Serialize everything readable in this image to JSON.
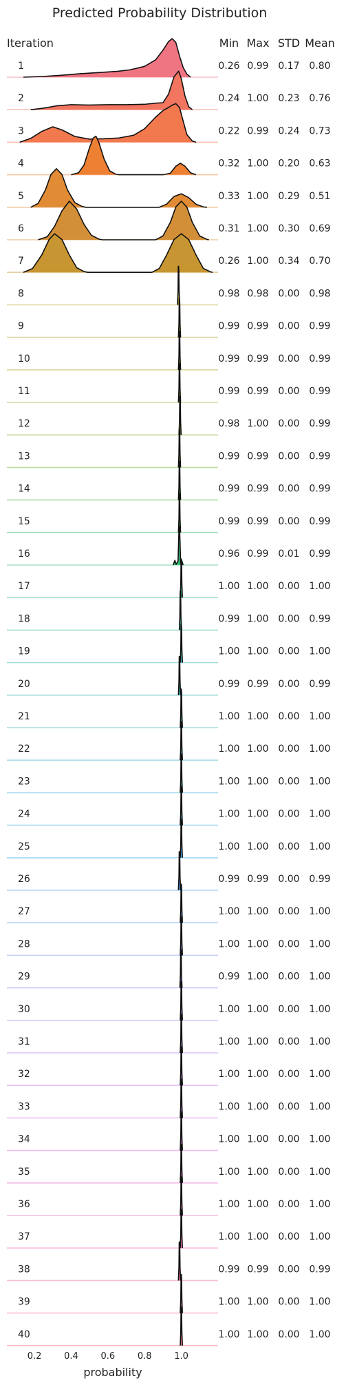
{
  "chart_data": {
    "type": "ridgeline",
    "title": "Predicted Probability Distribution",
    "xlabel": "probability",
    "row_header": "Iteration",
    "stat_headers": [
      "Min",
      "Max",
      "STD",
      "Mean"
    ],
    "xlim": [
      0.05,
      1.2
    ],
    "xticks": [
      0.2,
      0.4,
      0.6,
      0.8,
      1.0
    ],
    "xtick_labels": [
      "0.2",
      "0.4",
      "0.6",
      "0.8",
      "1.0"
    ],
    "rows": [
      {
        "iteration": "1",
        "min": "0.26",
        "max": "0.99",
        "std": "0.17",
        "mean": "0.80",
        "color": "#f07582",
        "curve": [
          [
            0.14,
            0
          ],
          [
            0.25,
            0.02
          ],
          [
            0.35,
            0.05
          ],
          [
            0.45,
            0.09
          ],
          [
            0.55,
            0.12
          ],
          [
            0.65,
            0.15
          ],
          [
            0.72,
            0.19
          ],
          [
            0.8,
            0.28
          ],
          [
            0.86,
            0.45
          ],
          [
            0.9,
            0.7
          ],
          [
            0.93,
            0.92
          ],
          [
            0.95,
            1.0
          ],
          [
            0.97,
            0.9
          ],
          [
            0.99,
            0.55
          ],
          [
            1.01,
            0.25
          ],
          [
            1.03,
            0.08
          ],
          [
            1.05,
            0
          ]
        ]
      },
      {
        "iteration": "2",
        "min": "0.24",
        "max": "1.00",
        "std": "0.23",
        "mean": "0.76",
        "color": "#f27560",
        "curve": [
          [
            0.18,
            0
          ],
          [
            0.25,
            0.04
          ],
          [
            0.32,
            0.1
          ],
          [
            0.4,
            0.13
          ],
          [
            0.5,
            0.12
          ],
          [
            0.6,
            0.13
          ],
          [
            0.7,
            0.13
          ],
          [
            0.8,
            0.14
          ],
          [
            0.86,
            0.17
          ],
          [
            0.9,
            0.18
          ],
          [
            0.93,
            0.4
          ],
          [
            0.96,
            0.85
          ],
          [
            0.985,
            1.0
          ],
          [
            1.0,
            0.8
          ],
          [
            1.02,
            0.35
          ],
          [
            1.04,
            0.08
          ],
          [
            1.06,
            0
          ]
        ]
      },
      {
        "iteration": "3",
        "min": "0.22",
        "max": "0.99",
        "std": "0.24",
        "mean": "0.73",
        "color": "#f2784e",
        "curve": [
          [
            0.12,
            0
          ],
          [
            0.18,
            0.1
          ],
          [
            0.24,
            0.28
          ],
          [
            0.3,
            0.4
          ],
          [
            0.35,
            0.32
          ],
          [
            0.42,
            0.15
          ],
          [
            0.5,
            0.08
          ],
          [
            0.58,
            0.09
          ],
          [
            0.66,
            0.11
          ],
          [
            0.74,
            0.18
          ],
          [
            0.8,
            0.35
          ],
          [
            0.86,
            0.65
          ],
          [
            0.9,
            0.82
          ],
          [
            0.93,
            0.9
          ],
          [
            0.95,
            0.96
          ],
          [
            0.97,
            1.0
          ],
          [
            0.99,
            0.9
          ],
          [
            1.01,
            0.55
          ],
          [
            1.03,
            0.2
          ],
          [
            1.06,
            0.03
          ],
          [
            1.08,
            0
          ]
        ]
      },
      {
        "iteration": "4",
        "min": "0.32",
        "max": "1.00",
        "std": "0.20",
        "mean": "0.63",
        "color": "#ee8033",
        "curve": [
          [
            0.4,
            0
          ],
          [
            0.44,
            0.05
          ],
          [
            0.47,
            0.25
          ],
          [
            0.5,
            0.7
          ],
          [
            0.52,
            0.95
          ],
          [
            0.535,
            1.0
          ],
          [
            0.55,
            0.85
          ],
          [
            0.58,
            0.4
          ],
          [
            0.61,
            0.1
          ],
          [
            0.64,
            0.02
          ],
          [
            0.66,
            0
          ],
          [
            0.9,
            0
          ],
          [
            0.94,
            0.04
          ],
          [
            0.97,
            0.22
          ],
          [
            0.995,
            0.3
          ],
          [
            1.02,
            0.22
          ],
          [
            1.05,
            0.05
          ],
          [
            1.08,
            0
          ]
        ]
      },
      {
        "iteration": "5",
        "min": "0.33",
        "max": "1.00",
        "std": "0.29",
        "mean": "0.51",
        "color": "#e18b35",
        "curve": [
          [
            0.18,
            0
          ],
          [
            0.22,
            0.1
          ],
          [
            0.26,
            0.45
          ],
          [
            0.29,
            0.85
          ],
          [
            0.32,
            1.0
          ],
          [
            0.35,
            0.85
          ],
          [
            0.38,
            0.45
          ],
          [
            0.42,
            0.12
          ],
          [
            0.46,
            0.02
          ],
          [
            0.48,
            0
          ],
          [
            0.88,
            0
          ],
          [
            0.92,
            0.08
          ],
          [
            0.96,
            0.28
          ],
          [
            1.0,
            0.35
          ],
          [
            1.04,
            0.25
          ],
          [
            1.08,
            0.08
          ],
          [
            1.12,
            0.01
          ],
          [
            1.14,
            0
          ]
        ]
      },
      {
        "iteration": "6",
        "min": "0.31",
        "max": "1.00",
        "std": "0.30",
        "mean": "0.69",
        "color": "#d38f38",
        "curve": [
          [
            0.22,
            0
          ],
          [
            0.27,
            0.08
          ],
          [
            0.31,
            0.35
          ],
          [
            0.35,
            0.75
          ],
          [
            0.39,
            1.0
          ],
          [
            0.43,
            0.8
          ],
          [
            0.47,
            0.4
          ],
          [
            0.51,
            0.12
          ],
          [
            0.55,
            0.02
          ],
          [
            0.57,
            0
          ],
          [
            0.86,
            0
          ],
          [
            0.9,
            0.1
          ],
          [
            0.94,
            0.45
          ],
          [
            0.97,
            0.85
          ],
          [
            1.0,
            1.0
          ],
          [
            1.03,
            0.85
          ],
          [
            1.06,
            0.45
          ],
          [
            1.1,
            0.1
          ],
          [
            1.14,
            0.01
          ],
          [
            1.15,
            0
          ]
        ]
      },
      {
        "iteration": "7",
        "min": "0.26",
        "max": "1.00",
        "std": "0.34",
        "mean": "0.70",
        "color": "#c79632",
        "curve": [
          [
            0.14,
            0
          ],
          [
            0.19,
            0.1
          ],
          [
            0.24,
            0.45
          ],
          [
            0.28,
            0.85
          ],
          [
            0.31,
            1.0
          ],
          [
            0.35,
            0.85
          ],
          [
            0.39,
            0.45
          ],
          [
            0.43,
            0.12
          ],
          [
            0.47,
            0.02
          ],
          [
            0.49,
            0
          ],
          [
            0.84,
            0
          ],
          [
            0.88,
            0.1
          ],
          [
            0.92,
            0.45
          ],
          [
            0.96,
            0.85
          ],
          [
            1.0,
            1.0
          ],
          [
            1.04,
            0.85
          ],
          [
            1.08,
            0.45
          ],
          [
            1.12,
            0.1
          ],
          [
            1.16,
            0.01
          ],
          [
            1.17,
            0
          ]
        ]
      },
      {
        "iteration": "8",
        "min": "0.98",
        "max": "0.98",
        "std": "0.00",
        "mean": "0.98",
        "color": "#bfa231",
        "peak": 0.985
      },
      {
        "iteration": "9",
        "min": "0.99",
        "max": "0.99",
        "std": "0.00",
        "mean": "0.99",
        "color": "#b4a72f",
        "peak": 0.99
      },
      {
        "iteration": "10",
        "min": "0.99",
        "max": "0.99",
        "std": "0.00",
        "mean": "0.99",
        "color": "#a8ac2e",
        "peak": 0.99
      },
      {
        "iteration": "11",
        "min": "0.99",
        "max": "0.99",
        "std": "0.00",
        "mean": "0.99",
        "color": "#99b02f",
        "peak": 0.99
      },
      {
        "iteration": "12",
        "min": "0.98",
        "max": "1.00",
        "std": "0.00",
        "mean": "0.99",
        "color": "#87b432",
        "peak": 0.993
      },
      {
        "iteration": "13",
        "min": "0.99",
        "max": "0.99",
        "std": "0.00",
        "mean": "0.99",
        "color": "#6fb833",
        "peak": 0.99
      },
      {
        "iteration": "14",
        "min": "0.99",
        "max": "0.99",
        "std": "0.00",
        "mean": "0.99",
        "color": "#4fbb3a",
        "peak": 0.99
      },
      {
        "iteration": "15",
        "min": "0.99",
        "max": "0.99",
        "std": "0.00",
        "mean": "0.99",
        "color": "#3dbc57",
        "peak": 0.99
      },
      {
        "iteration": "16",
        "min": "0.96",
        "max": "0.99",
        "std": "0.01",
        "mean": "0.99",
        "color": "#37bb77",
        "peak": 0.99,
        "wide": true
      },
      {
        "iteration": "17",
        "min": "1.00",
        "max": "1.00",
        "std": "0.00",
        "mean": "1.00",
        "color": "#36ba8d",
        "peak": 1.0
      },
      {
        "iteration": "18",
        "min": "0.99",
        "max": "1.00",
        "std": "0.00",
        "mean": "0.99",
        "color": "#37b99c",
        "peak": 0.995
      },
      {
        "iteration": "19",
        "min": "1.00",
        "max": "1.00",
        "std": "0.00",
        "mean": "1.00",
        "color": "#38b8aa",
        "peak": 1.0
      },
      {
        "iteration": "20",
        "min": "0.99",
        "max": "0.99",
        "std": "0.00",
        "mean": "0.99",
        "color": "#39b7b5",
        "peak": 0.99
      },
      {
        "iteration": "21",
        "min": "1.00",
        "max": "1.00",
        "std": "0.00",
        "mean": "1.00",
        "color": "#3bb6c0",
        "peak": 1.0
      },
      {
        "iteration": "22",
        "min": "1.00",
        "max": "1.00",
        "std": "0.00",
        "mean": "1.00",
        "color": "#3cb4cb",
        "peak": 1.0
      },
      {
        "iteration": "23",
        "min": "1.00",
        "max": "1.00",
        "std": "0.00",
        "mean": "1.00",
        "color": "#3eb2d6",
        "peak": 1.0
      },
      {
        "iteration": "24",
        "min": "1.00",
        "max": "1.00",
        "std": "0.00",
        "mean": "1.00",
        "color": "#41afe2",
        "peak": 1.0
      },
      {
        "iteration": "25",
        "min": "1.00",
        "max": "1.00",
        "std": "0.00",
        "mean": "1.00",
        "color": "#47aaec",
        "peak": 1.0
      },
      {
        "iteration": "26",
        "min": "0.99",
        "max": "0.99",
        "std": "0.00",
        "mean": "0.99",
        "color": "#54a4f2",
        "peak": 0.99
      },
      {
        "iteration": "27",
        "min": "1.00",
        "max": "1.00",
        "std": "0.00",
        "mean": "1.00",
        "color": "#649df5",
        "peak": 1.0
      },
      {
        "iteration": "28",
        "min": "1.00",
        "max": "1.00",
        "std": "0.00",
        "mean": "1.00",
        "color": "#7896f6",
        "peak": 1.0
      },
      {
        "iteration": "29",
        "min": "0.99",
        "max": "1.00",
        "std": "0.00",
        "mean": "1.00",
        "color": "#8c8ef6",
        "peak": 0.998
      },
      {
        "iteration": "30",
        "min": "1.00",
        "max": "1.00",
        "std": "0.00",
        "mean": "1.00",
        "color": "#9f88f5",
        "peak": 1.0
      },
      {
        "iteration": "31",
        "min": "1.00",
        "max": "1.00",
        "std": "0.00",
        "mean": "1.00",
        "color": "#b181f3",
        "peak": 1.0
      },
      {
        "iteration": "32",
        "min": "1.00",
        "max": "1.00",
        "std": "0.00",
        "mean": "1.00",
        "color": "#c27af0",
        "peak": 1.0
      },
      {
        "iteration": "33",
        "min": "1.00",
        "max": "1.00",
        "std": "0.00",
        "mean": "1.00",
        "color": "#d274ea",
        "peak": 1.0
      },
      {
        "iteration": "34",
        "min": "1.00",
        "max": "1.00",
        "std": "0.00",
        "mean": "1.00",
        "color": "#e06de2",
        "peak": 1.0
      },
      {
        "iteration": "35",
        "min": "1.00",
        "max": "1.00",
        "std": "0.00",
        "mean": "1.00",
        "color": "#eb6ad5",
        "peak": 1.0
      },
      {
        "iteration": "36",
        "min": "1.00",
        "max": "1.00",
        "std": "0.00",
        "mean": "1.00",
        "color": "#f26bc6",
        "peak": 1.0
      },
      {
        "iteration": "37",
        "min": "1.00",
        "max": "1.00",
        "std": "0.00",
        "mean": "1.00",
        "color": "#f56db6",
        "peak": 1.0
      },
      {
        "iteration": "38",
        "min": "0.99",
        "max": "0.99",
        "std": "0.00",
        "mean": "0.99",
        "color": "#f670a5",
        "peak": 0.99
      },
      {
        "iteration": "39",
        "min": "1.00",
        "max": "1.00",
        "std": "0.00",
        "mean": "1.00",
        "color": "#f57294",
        "peak": 1.0
      },
      {
        "iteration": "40",
        "min": "1.00",
        "max": "1.00",
        "std": "0.00",
        "mean": "1.00",
        "color": "#f3738a",
        "peak": 1.0
      }
    ]
  }
}
